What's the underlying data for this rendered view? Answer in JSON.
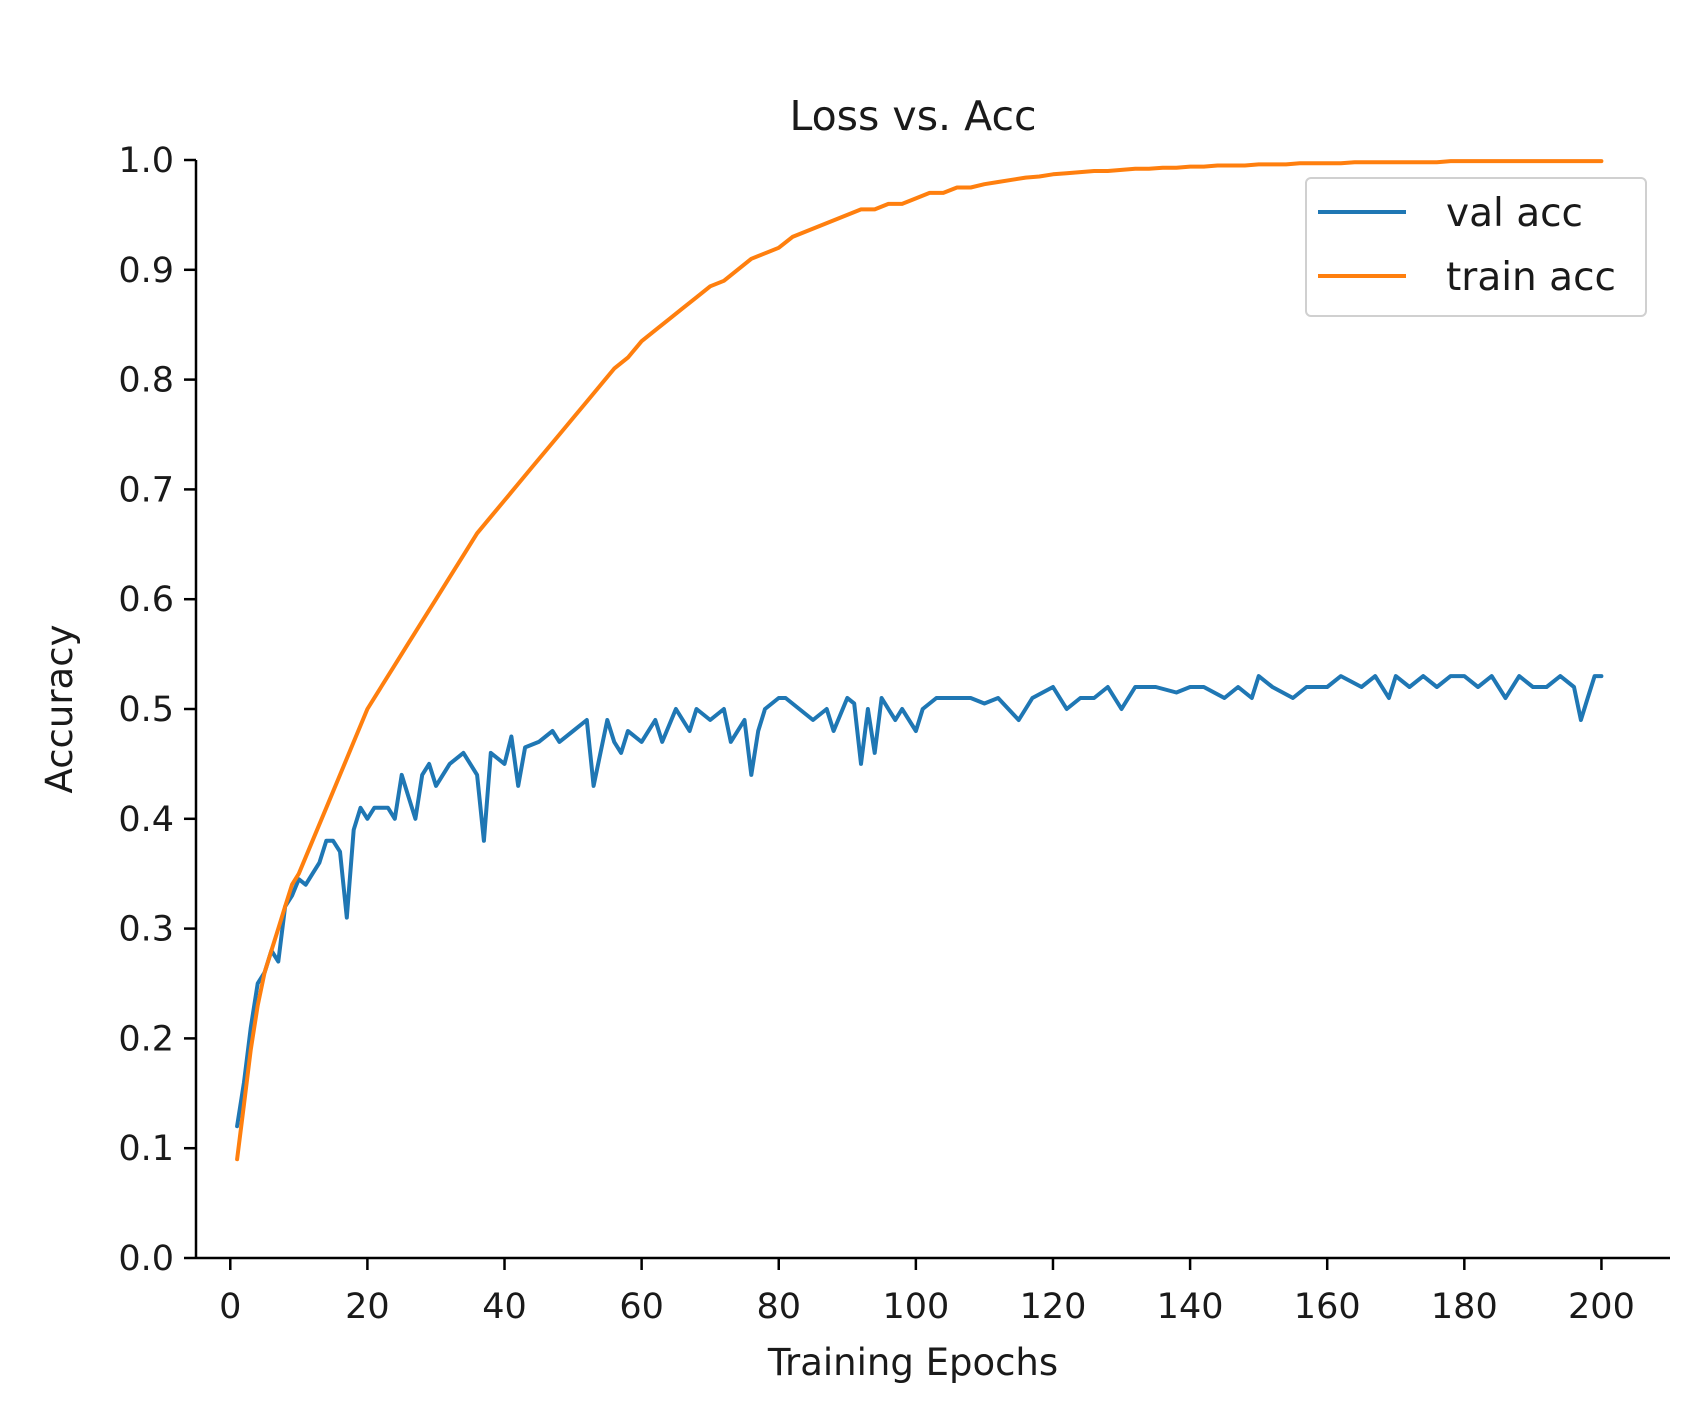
{
  "chart_data": {
    "type": "line",
    "title": "Loss vs. Acc",
    "xlabel": "Training Epochs",
    "ylabel": "Accuracy",
    "xlim": [
      -5,
      210
    ],
    "ylim": [
      0.0,
      1.0
    ],
    "xticks": [
      0,
      20,
      40,
      60,
      80,
      100,
      120,
      140,
      160,
      180,
      200
    ],
    "xtick_labels": [
      "0",
      "20",
      "40",
      "60",
      "80",
      "100",
      "120",
      "140",
      "160",
      "180",
      "200"
    ],
    "yticks": [
      0.0,
      0.1,
      0.2,
      0.3,
      0.4,
      0.5,
      0.6,
      0.7,
      0.8,
      0.9,
      1.0
    ],
    "ytick_labels": [
      "0.0",
      "0.1",
      "0.2",
      "0.3",
      "0.4",
      "0.5",
      "0.6",
      "0.7",
      "0.8",
      "0.9",
      "1.0"
    ],
    "grid": false,
    "legend_position": "top-right",
    "series": [
      {
        "name": "val acc",
        "color": "#1f77b4",
        "x": [
          1,
          2,
          3,
          4,
          5,
          6,
          7,
          8,
          9,
          10,
          11,
          12,
          13,
          14,
          15,
          16,
          17,
          18,
          19,
          20,
          21,
          22,
          23,
          24,
          25,
          26,
          27,
          28,
          29,
          30,
          32,
          34,
          36,
          37,
          38,
          40,
          41,
          42,
          43,
          45,
          47,
          48,
          50,
          52,
          53,
          55,
          56,
          57,
          58,
          60,
          62,
          63,
          65,
          67,
          68,
          70,
          72,
          73,
          75,
          76,
          77,
          78,
          80,
          81,
          83,
          85,
          87,
          88,
          90,
          91,
          92,
          93,
          94,
          95,
          96,
          97,
          98,
          100,
          101,
          103,
          105,
          108,
          110,
          112,
          115,
          117,
          120,
          122,
          124,
          126,
          128,
          130,
          132,
          135,
          138,
          140,
          142,
          145,
          147,
          149,
          150,
          152,
          155,
          157,
          160,
          162,
          165,
          167,
          169,
          170,
          172,
          174,
          176,
          178,
          180,
          182,
          184,
          186,
          188,
          190,
          192,
          194,
          196,
          197,
          198,
          199,
          200
        ],
        "values": [
          0.12,
          0.16,
          0.21,
          0.25,
          0.26,
          0.28,
          0.27,
          0.32,
          0.33,
          0.345,
          0.34,
          0.35,
          0.36,
          0.38,
          0.38,
          0.37,
          0.31,
          0.39,
          0.41,
          0.4,
          0.41,
          0.41,
          0.41,
          0.4,
          0.44,
          0.42,
          0.4,
          0.44,
          0.45,
          0.43,
          0.45,
          0.46,
          0.44,
          0.38,
          0.46,
          0.45,
          0.475,
          0.43,
          0.465,
          0.47,
          0.48,
          0.47,
          0.48,
          0.49,
          0.43,
          0.49,
          0.47,
          0.46,
          0.48,
          0.47,
          0.49,
          0.47,
          0.5,
          0.48,
          0.5,
          0.49,
          0.5,
          0.47,
          0.49,
          0.44,
          0.48,
          0.5,
          0.51,
          0.51,
          0.5,
          0.49,
          0.5,
          0.48,
          0.51,
          0.505,
          0.45,
          0.5,
          0.46,
          0.51,
          0.5,
          0.49,
          0.5,
          0.48,
          0.5,
          0.51,
          0.51,
          0.51,
          0.505,
          0.51,
          0.49,
          0.51,
          0.52,
          0.5,
          0.51,
          0.51,
          0.52,
          0.5,
          0.52,
          0.52,
          0.515,
          0.52,
          0.52,
          0.51,
          0.52,
          0.51,
          0.53,
          0.52,
          0.51,
          0.52,
          0.52,
          0.53,
          0.52,
          0.53,
          0.51,
          0.53,
          0.52,
          0.53,
          0.52,
          0.53,
          0.53,
          0.52,
          0.53,
          0.51,
          0.53,
          0.52,
          0.52,
          0.53,
          0.52,
          0.49,
          0.51,
          0.53,
          0.53
        ]
      },
      {
        "name": "train acc",
        "color": "#ff7f0e",
        "x": [
          1,
          2,
          3,
          4,
          5,
          6,
          7,
          8,
          9,
          10,
          12,
          14,
          16,
          18,
          20,
          22,
          24,
          26,
          28,
          30,
          32,
          34,
          36,
          38,
          40,
          42,
          44,
          46,
          48,
          50,
          52,
          54,
          56,
          58,
          60,
          62,
          64,
          66,
          68,
          70,
          72,
          74,
          76,
          78,
          80,
          82,
          84,
          86,
          88,
          90,
          92,
          94,
          96,
          98,
          100,
          102,
          104,
          106,
          108,
          110,
          112,
          114,
          116,
          118,
          120,
          122,
          124,
          126,
          128,
          130,
          132,
          134,
          136,
          138,
          140,
          142,
          144,
          146,
          148,
          150,
          152,
          154,
          156,
          158,
          160,
          162,
          164,
          166,
          168,
          170,
          172,
          174,
          176,
          178,
          180,
          182,
          184,
          186,
          188,
          190,
          192,
          194,
          196,
          198,
          200
        ],
        "values": [
          0.09,
          0.14,
          0.19,
          0.23,
          0.26,
          0.28,
          0.3,
          0.32,
          0.34,
          0.35,
          0.38,
          0.41,
          0.44,
          0.47,
          0.5,
          0.52,
          0.54,
          0.56,
          0.58,
          0.6,
          0.62,
          0.64,
          0.66,
          0.675,
          0.69,
          0.705,
          0.72,
          0.735,
          0.75,
          0.765,
          0.78,
          0.795,
          0.81,
          0.82,
          0.835,
          0.845,
          0.855,
          0.865,
          0.875,
          0.885,
          0.89,
          0.9,
          0.91,
          0.915,
          0.92,
          0.93,
          0.935,
          0.94,
          0.945,
          0.95,
          0.955,
          0.955,
          0.96,
          0.96,
          0.965,
          0.97,
          0.97,
          0.975,
          0.975,
          0.978,
          0.98,
          0.982,
          0.984,
          0.985,
          0.987,
          0.988,
          0.989,
          0.99,
          0.99,
          0.991,
          0.992,
          0.992,
          0.993,
          0.993,
          0.994,
          0.994,
          0.995,
          0.995,
          0.995,
          0.996,
          0.996,
          0.996,
          0.997,
          0.997,
          0.997,
          0.997,
          0.998,
          0.998,
          0.998,
          0.998,
          0.998,
          0.998,
          0.998,
          0.999,
          0.999,
          0.999,
          0.999,
          0.999,
          0.999,
          0.999,
          0.999,
          0.999,
          0.999,
          0.999,
          0.999
        ]
      }
    ]
  }
}
